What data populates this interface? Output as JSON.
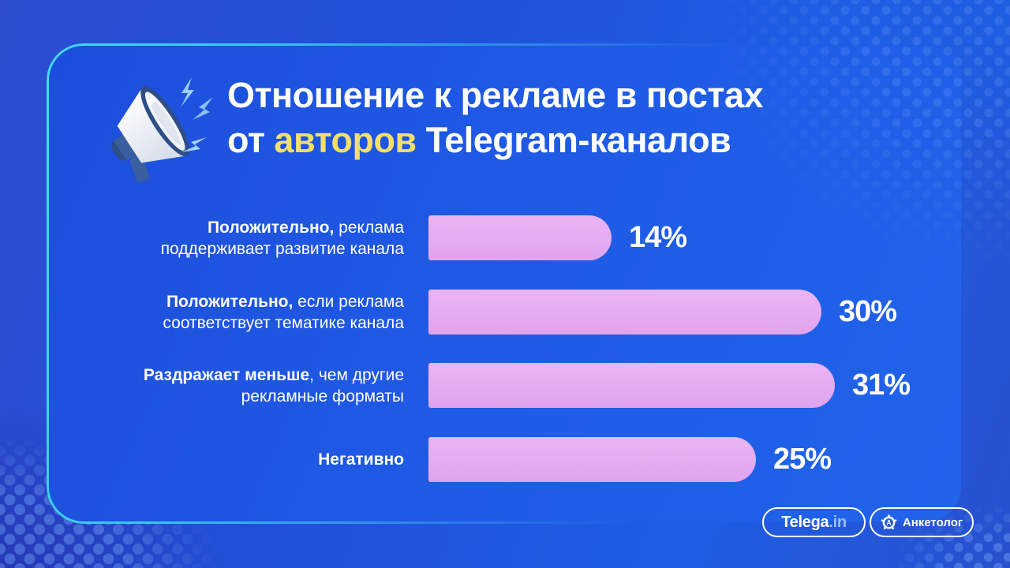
{
  "header": {
    "title_line1": "Отношение к рекламе в постах",
    "title_line2_pre": "от ",
    "title_line2_accent": "авторов",
    "title_line2_post": " Telegram-каналов",
    "icon": "megaphone-with-lightning-bolts"
  },
  "chart_data": {
    "type": "bar",
    "orientation": "horizontal",
    "title": "Отношение к рекламе в постах от авторов Telegram-каналов",
    "categories": [
      "Положительно, реклама поддерживает развитие канала",
      "Положительно, если реклама соответствует тематике канала",
      "Раздражает меньше, чем другие рекламные форматы",
      "Негативно"
    ],
    "values": [
      14,
      30,
      31,
      25
    ],
    "unit": "%",
    "xlim": [
      0,
      35
    ],
    "grid": false,
    "value_labels": [
      "14%",
      "30%",
      "31%",
      "25%"
    ],
    "rows": [
      {
        "value": 14,
        "display": "14%",
        "lines": [
          {
            "bold": "Положительно,",
            "text": " реклама"
          },
          {
            "bold": "",
            "text": "поддерживает развитие канала"
          }
        ]
      },
      {
        "value": 30,
        "display": "30%",
        "lines": [
          {
            "bold": "Положительно,",
            "text": " если реклама"
          },
          {
            "bold": "",
            "text": "соответствует тематике канала"
          }
        ]
      },
      {
        "value": 31,
        "display": "31%",
        "lines": [
          {
            "bold": "Раздражает меньше",
            "text": ", чем другие"
          },
          {
            "bold": "",
            "text": "рекламные форматы"
          }
        ]
      },
      {
        "value": 25,
        "display": "25%",
        "lines": [
          {
            "bold": "Негативно",
            "text": ""
          }
        ]
      }
    ],
    "bar_color": "#e5acf1",
    "value_color": "#ffffff"
  },
  "footer": {
    "telega_badge": {
      "main": "Telega",
      "suffix": ".in"
    },
    "anketolog_badge": {
      "label": "Анкетолог",
      "icon": "gear-a-logo"
    }
  },
  "colors": {
    "accent_yellow": "#f2df6e",
    "bar_pink": "#e5acf1",
    "card_border_cyan": "#3edcf2",
    "card_blue": "#1f5ae5",
    "background_dark_blue": "#2535b2",
    "lightning_blue": "#9ccbf5"
  }
}
